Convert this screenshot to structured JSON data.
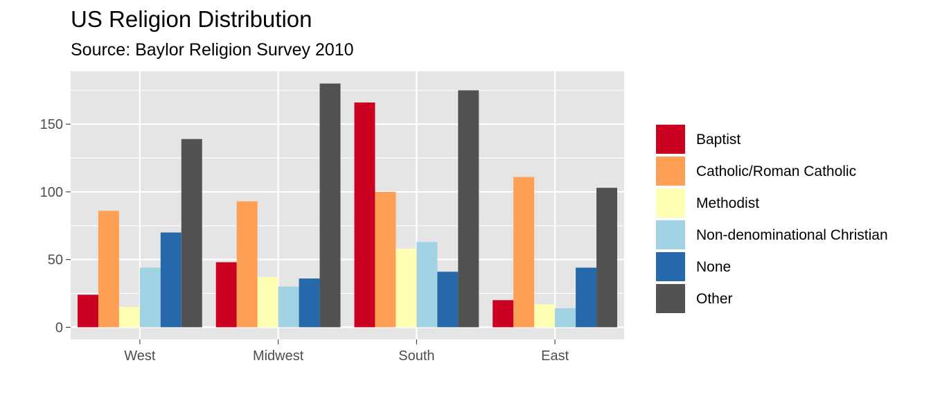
{
  "title": "US Religion Distribution",
  "subtitle": "Source: Baylor Religion Survey 2010",
  "chart_data": {
    "type": "bar",
    "layout": "grouped",
    "categories": [
      "West",
      "Midwest",
      "South",
      "East"
    ],
    "series": [
      {
        "name": "Baptist",
        "color": "#CA0020",
        "values": [
          24,
          48,
          166,
          20
        ]
      },
      {
        "name": "Catholic/Roman Catholic",
        "color": "#FDA056",
        "values": [
          86,
          93,
          100,
          111
        ]
      },
      {
        "name": "Methodist",
        "color": "#FFFFB3",
        "values": [
          15,
          37,
          58,
          17
        ]
      },
      {
        "name": "Non-denominational Christian",
        "color": "#A1D3E4",
        "values": [
          44,
          30,
          63,
          14
        ]
      },
      {
        "name": "None",
        "color": "#2569AB",
        "values": [
          70,
          36,
          41,
          44
        ]
      },
      {
        "name": "Other",
        "color": "#525252",
        "values": [
          139,
          180,
          175,
          103
        ]
      }
    ],
    "y_ticks": [
      0,
      50,
      100,
      150
    ],
    "ylim": [
      -9,
      189
    ],
    "grid": true,
    "legend_position": "right",
    "panel_background": "#E5E5E5",
    "grid_color": "#FFFFFF"
  }
}
